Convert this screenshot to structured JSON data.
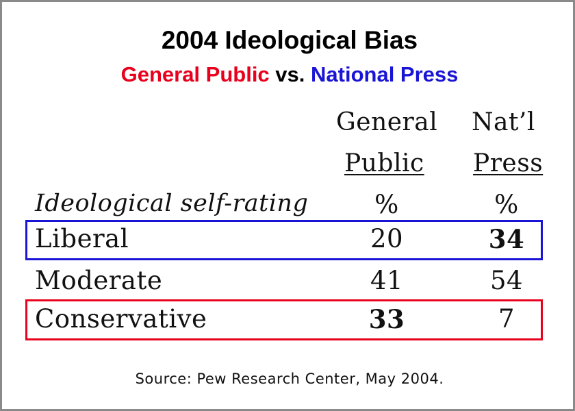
{
  "chart_data": {
    "type": "table",
    "title": "2004 Ideological Bias",
    "subtitle": {
      "part_a": "General Public",
      "part_vs": "vs.",
      "part_b": "National Press"
    },
    "row_header": "Ideological self-rating",
    "columns": [
      {
        "line1": "General",
        "line2": "Public",
        "unit": "%"
      },
      {
        "line1": "Nat’l",
        "line2": "Press",
        "unit": "%"
      }
    ],
    "rows": [
      {
        "label": "Liberal",
        "values": [
          "20",
          "34"
        ],
        "highlight": "blue",
        "bold_col": 1
      },
      {
        "label": "Moderate",
        "values": [
          "41",
          "54"
        ],
        "highlight": "none",
        "bold_col": -1
      },
      {
        "label": "Conservative",
        "values": [
          "33",
          "7"
        ],
        "highlight": "red",
        "bold_col": 0
      }
    ],
    "source": "Source: Pew Research Center, May 2004."
  },
  "colors": {
    "red": "#e8001c",
    "blue": "#1a14d6",
    "frame": "#8a8a8a"
  }
}
